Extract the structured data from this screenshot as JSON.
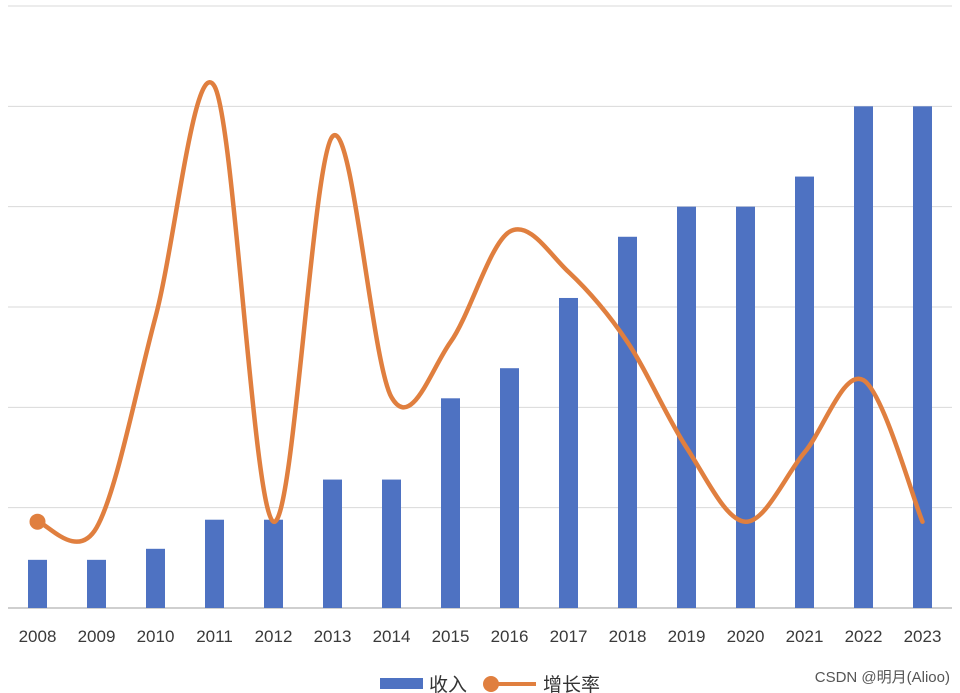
{
  "chart_data": {
    "type": "bar",
    "categories": [
      "2008",
      "2009",
      "2010",
      "2011",
      "2012",
      "2013",
      "2014",
      "2015",
      "2016",
      "2017",
      "2018",
      "2019",
      "2020",
      "2021",
      "2022",
      "2023"
    ],
    "series": [
      {
        "name": "收入",
        "type": "bar",
        "color": "#4E72C2",
        "values": [
          0.48,
          0.48,
          0.59,
          0.88,
          0.88,
          1.28,
          1.28,
          2.09,
          2.39,
          3.09,
          3.7,
          4.0,
          4.0,
          4.3,
          5.0,
          5.0
        ]
      },
      {
        "name": "增长率",
        "type": "line",
        "smooth": true,
        "color": "#E07F3F",
        "values": [
          0.86,
          0.8,
          2.9,
          5.2,
          0.86,
          4.7,
          2.1,
          2.65,
          3.75,
          3.35,
          2.65,
          1.6,
          0.86,
          1.55,
          2.27,
          0.86
        ]
      }
    ],
    "ylim": [
      0,
      6
    ],
    "gridlines": 6,
    "y_tick_labels_shown": false,
    "legend": "bottom-center"
  },
  "watermark": "CSDN @明月(Alioo)"
}
